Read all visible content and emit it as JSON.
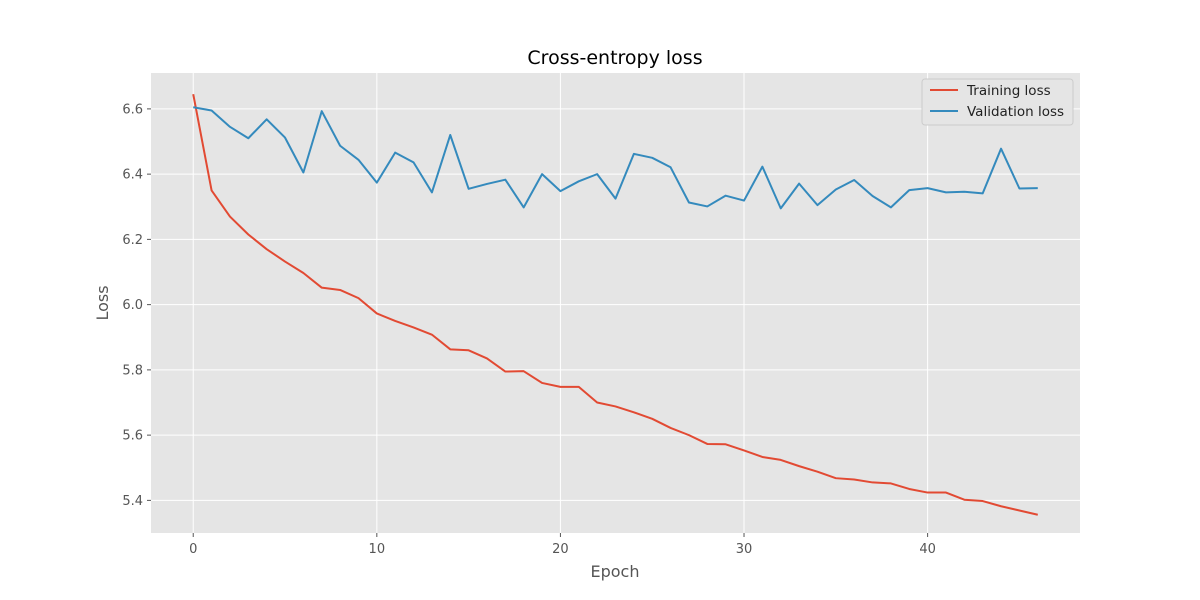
{
  "chart_data": {
    "type": "line",
    "title": "Cross-entropy loss",
    "xlabel": "Epoch",
    "ylabel": "Loss",
    "xlim": [
      -2.3,
      48.3
    ],
    "ylim": [
      5.3,
      6.71
    ],
    "xticks": [
      0,
      10,
      20,
      30,
      40
    ],
    "yticks": [
      5.4,
      5.6,
      5.8,
      6.0,
      6.2,
      6.4,
      6.6
    ],
    "grid": true,
    "legend_position": "top-right",
    "x": [
      0,
      1,
      2,
      3,
      4,
      5,
      6,
      7,
      8,
      9,
      10,
      11,
      12,
      13,
      14,
      15,
      16,
      17,
      18,
      19,
      20,
      21,
      22,
      23,
      24,
      25,
      26,
      27,
      28,
      29,
      30,
      31,
      32,
      33,
      34,
      35,
      36,
      37,
      38,
      39,
      40,
      41,
      42,
      43,
      44,
      45,
      46
    ],
    "series": [
      {
        "name": "Training loss",
        "color": "#e24a33",
        "values": [
          6.645,
          6.35,
          6.27,
          6.215,
          6.17,
          6.132,
          6.097,
          6.052,
          6.045,
          6.02,
          5.973,
          5.95,
          5.93,
          5.908,
          5.863,
          5.86,
          5.835,
          5.795,
          5.796,
          5.76,
          5.748,
          5.748,
          5.7,
          5.688,
          5.67,
          5.65,
          5.622,
          5.6,
          5.573,
          5.572,
          5.553,
          5.533,
          5.524,
          5.505,
          5.488,
          5.468,
          5.464,
          5.455,
          5.452,
          5.435,
          5.424,
          5.424,
          5.402,
          5.398,
          5.382,
          5.369,
          5.356
        ]
      },
      {
        "name": "Validation loss",
        "color": "#348abd",
        "values": [
          6.605,
          6.595,
          6.545,
          6.51,
          6.568,
          6.512,
          6.405,
          6.593,
          6.487,
          6.444,
          6.374,
          6.466,
          6.436,
          6.344,
          6.52,
          6.355,
          6.37,
          6.383,
          6.298,
          6.4,
          6.348,
          6.378,
          6.4,
          6.325,
          6.462,
          6.45,
          6.421,
          6.313,
          6.301,
          6.334,
          6.319,
          6.423,
          6.295,
          6.371,
          6.305,
          6.353,
          6.382,
          6.333,
          6.298,
          6.351,
          6.357,
          6.344,
          6.346,
          6.341,
          6.478,
          6.356,
          6.357
        ]
      }
    ]
  }
}
